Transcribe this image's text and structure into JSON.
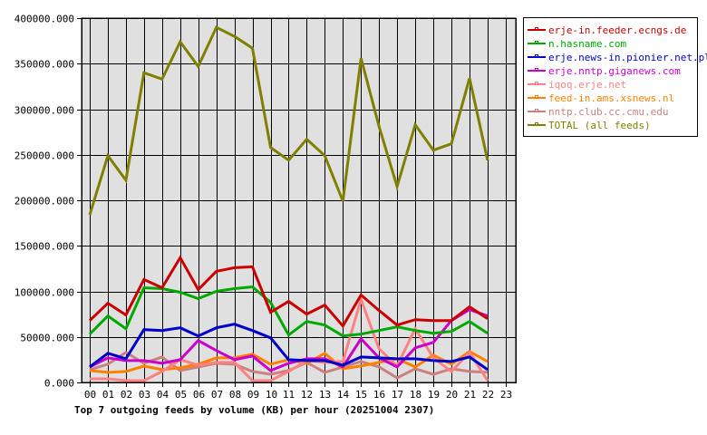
{
  "chart_data": {
    "type": "line",
    "title": "Top 7 outgoing feeds by volume (KB) per hour (20251004 2307)",
    "xlabel": "",
    "ylabel": "",
    "ylim": [
      0,
      400000
    ],
    "yticks": [
      "0.000",
      "50000.000",
      "100000.000",
      "150000.000",
      "200000.000",
      "250000.000",
      "300000.000",
      "350000.000",
      "400000.000"
    ],
    "x": [
      "00",
      "01",
      "02",
      "03",
      "04",
      "05",
      "06",
      "07",
      "08",
      "09",
      "10",
      "11",
      "12",
      "13",
      "14",
      "15",
      "16",
      "17",
      "18",
      "19",
      "20",
      "21",
      "22",
      "23"
    ],
    "grid": true,
    "legend_position": "right",
    "series": [
      {
        "name": "erje-in.feeder.ecngs.de",
        "color": "#cc0000",
        "values": [
          68000,
          87000,
          74000,
          113000,
          104000,
          137000,
          102000,
          122000,
          126000,
          127000,
          77000,
          89000,
          75000,
          85000,
          62000,
          96000,
          79000,
          63000,
          69000,
          68000,
          68000,
          83000,
          70000
        ]
      },
      {
        "name": "n.hasname.com",
        "color": "#00aa00",
        "values": [
          53000,
          73000,
          59000,
          104000,
          103000,
          99000,
          92000,
          100000,
          103000,
          105000,
          88000,
          52000,
          67000,
          63000,
          51000,
          53000,
          57000,
          61000,
          57000,
          54000,
          56000,
          67000,
          54000
        ]
      },
      {
        "name": "erje.news-in.pionier.net.pl",
        "color": "#0000cc",
        "values": [
          17000,
          32000,
          26000,
          58000,
          57000,
          60000,
          51000,
          60000,
          64000,
          57000,
          49000,
          25000,
          24000,
          24000,
          19000,
          28000,
          27000,
          26000,
          26000,
          24000,
          23000,
          28000,
          14000
        ]
      },
      {
        "name": "erje.nntp.giganews.com",
        "color": "#cc00cc",
        "values": [
          17000,
          27000,
          24000,
          24000,
          21000,
          25000,
          46000,
          35000,
          25000,
          29000,
          13000,
          21000,
          26000,
          26000,
          17000,
          48000,
          27000,
          17000,
          38000,
          44000,
          68000,
          80000,
          73000
        ]
      },
      {
        "name": "iqoq.erje.net",
        "color": "#ff8080",
        "values": [
          4000,
          4000,
          2000,
          2000,
          12000,
          25000,
          19000,
          22000,
          22000,
          2000,
          2000,
          12000,
          24000,
          22000,
          23000,
          91000,
          37000,
          18000,
          59000,
          27000,
          12000,
          33000,
          2000
        ]
      },
      {
        "name": "feed-in.ams.xsnews.nl",
        "color": "#ff8000",
        "values": [
          13000,
          11000,
          12000,
          18000,
          14000,
          16000,
          20000,
          27000,
          27000,
          31000,
          20000,
          25000,
          21000,
          32000,
          15000,
          18000,
          22000,
          26000,
          17000,
          30000,
          20000,
          34000,
          23000
        ]
      },
      {
        "name": "nntp.club.cc.cmu.edu",
        "color": "#cc8080",
        "values": [
          14000,
          20000,
          33000,
          21000,
          28000,
          13000,
          17000,
          21000,
          20000,
          12000,
          9000,
          13000,
          22000,
          11000,
          17000,
          23000,
          17000,
          5000,
          15000,
          9000,
          15000,
          12000,
          11000
        ]
      },
      {
        "name": "TOTAL (all feeds)",
        "color": "#808000",
        "values": [
          184000,
          249000,
          222000,
          340000,
          333000,
          374000,
          347000,
          390000,
          380000,
          367000,
          258000,
          244000,
          267000,
          249000,
          199000,
          356000,
          281000,
          215000,
          283000,
          255000,
          262000,
          334000,
          244000
        ]
      }
    ]
  },
  "legend": {
    "items": [
      {
        "label": "erje-in.feeder.ecngs.de",
        "color": "#cc0000"
      },
      {
        "label": "n.hasname.com",
        "color": "#00aa00"
      },
      {
        "label": "erje.news-in.pionier.net.pl",
        "color": "#0000cc"
      },
      {
        "label": "erje.nntp.giganews.com",
        "color": "#cc00cc"
      },
      {
        "label": "iqoq.erje.net",
        "color": "#ff8080"
      },
      {
        "label": "feed-in.ams.xsnews.nl",
        "color": "#ff8000"
      },
      {
        "label": "nntp.club.cc.cmu.edu",
        "color": "#cc8080"
      },
      {
        "label": "TOTAL (all feeds)",
        "color": "#808000"
      }
    ]
  }
}
